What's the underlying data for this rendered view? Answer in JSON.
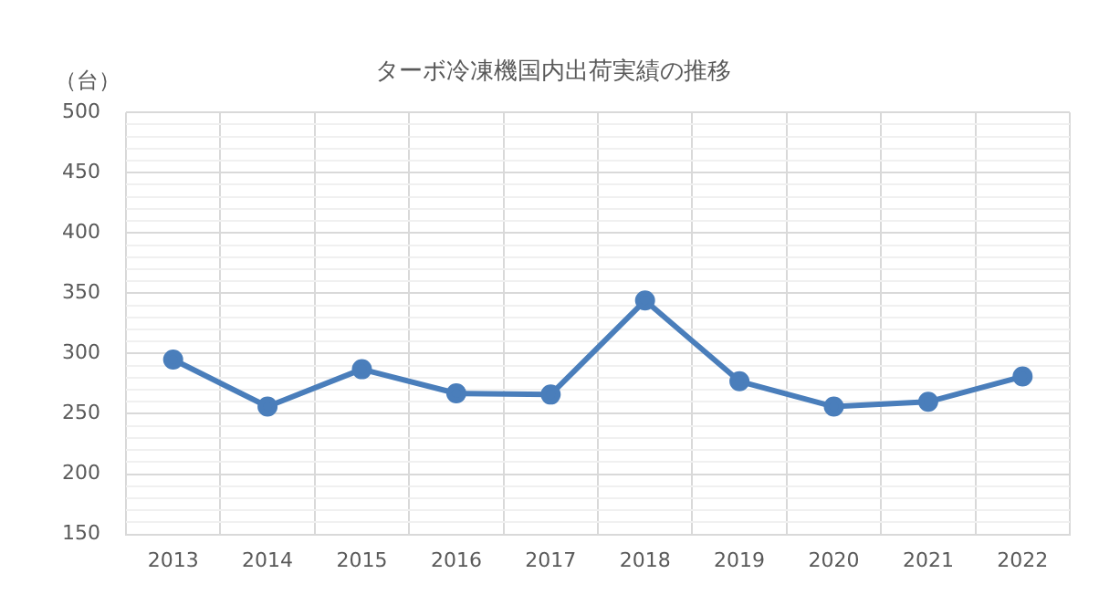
{
  "chart_data": {
    "type": "line",
    "title": "ターボ冷凍機国内出荷実績の推移",
    "ylabel": "（台）",
    "categories": [
      "2013",
      "2014",
      "2015",
      "2016",
      "2017",
      "2018",
      "2019",
      "2020",
      "2021",
      "2022"
    ],
    "series": [
      {
        "color": "#4a7ebb",
        "values": [
          295,
          256,
          287,
          267,
          266,
          344,
          277,
          256,
          260,
          281
        ]
      }
    ],
    "ylim": [
      150,
      500
    ],
    "yticks": [
      150,
      {
        "value": 160,
        "label": null
      },
      {
        "value": 170,
        "label": null
      },
      {
        "value": 180,
        "label": null
      },
      {
        "value": 190,
        "label": null
      },
      200,
      {
        "value": 210,
        "label": null
      },
      {
        "value": 220,
        "label": null
      },
      {
        "value": 230,
        "label": null
      },
      {
        "value": 240,
        "label": null
      },
      250,
      {
        "value": 260,
        "label": null
      },
      {
        "value": 270,
        "label": null
      },
      {
        "value": 280,
        "label": null
      },
      {
        "value": 290,
        "label": null
      },
      300,
      {
        "value": 310,
        "label": null
      },
      {
        "value": 320,
        "label": null
      },
      {
        "value": 330,
        "label": null
      },
      {
        "value": 340,
        "label": null
      },
      350,
      {
        "value": 360,
        "label": null
      },
      {
        "value": 370,
        "label": null
      },
      {
        "value": 380,
        "label": null
      },
      {
        "value": 390,
        "label": null
      },
      400,
      {
        "value": 410,
        "label": null
      },
      {
        "value": 420,
        "label": null
      },
      {
        "value": 430,
        "label": null
      },
      {
        "value": 440,
        "label": null
      },
      450,
      {
        "value": 460,
        "label": null
      },
      {
        "value": 470,
        "label": null
      },
      {
        "value": 480,
        "label": null
      },
      {
        "value": 490,
        "label": null
      },
      500
    ],
    "grid": true,
    "legend": false,
    "marker": "circle",
    "line_style": "solid"
  }
}
